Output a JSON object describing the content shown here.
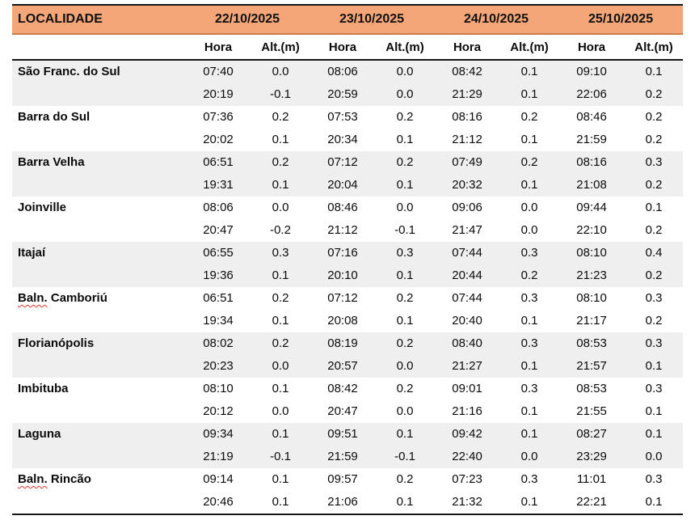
{
  "table": {
    "locality_header": "LOCALIDADE",
    "dates": [
      "22/10/2025",
      "23/10/2025",
      "24/10/2025",
      "25/10/2025"
    ],
    "sub_headers": {
      "hora": "Hora",
      "alt": "Alt.(m)"
    },
    "colors": {
      "header_bg": "#F4A678",
      "zebra_bg": "#EFEFEF",
      "squiggle": "#E2372B",
      "border": "#151515"
    },
    "localities": [
      {
        "parts": [
          {
            "text": "São Franc. do Sul",
            "squiggle": false
          }
        ],
        "rows": [
          [
            "07:40",
            "0.0",
            "08:06",
            "0.0",
            "08:42",
            "0.1",
            "09:10",
            "0.1"
          ],
          [
            "20:19",
            "-0.1",
            "20:59",
            "0.0",
            "21:29",
            "0.1",
            "22:06",
            "0.2"
          ]
        ]
      },
      {
        "parts": [
          {
            "text": "Barra do Sul",
            "squiggle": false
          }
        ],
        "rows": [
          [
            "07:36",
            "0.2",
            "07:53",
            "0.2",
            "08:16",
            "0.2",
            "08:46",
            "0.2"
          ],
          [
            "20:02",
            "0.1",
            "20:34",
            "0.1",
            "21:12",
            "0.1",
            "21:59",
            "0.2"
          ]
        ]
      },
      {
        "parts": [
          {
            "text": "Barra Velha",
            "squiggle": false
          }
        ],
        "rows": [
          [
            "06:51",
            "0.2",
            "07:12",
            "0.2",
            "07:49",
            "0.2",
            "08:16",
            "0.3"
          ],
          [
            "19:31",
            "0.1",
            "20:04",
            "0.1",
            "20:32",
            "0.1",
            "21:08",
            "0.2"
          ]
        ]
      },
      {
        "parts": [
          {
            "text": "Joinville",
            "squiggle": false
          }
        ],
        "rows": [
          [
            "08:06",
            "0.0",
            "08:46",
            "0.0",
            "09:06",
            "0.0",
            "09:44",
            "0.1"
          ],
          [
            "20:47",
            "-0.2",
            "21:12",
            "-0.1",
            "21:47",
            "0.0",
            "22:10",
            "0.2"
          ]
        ]
      },
      {
        "parts": [
          {
            "text": "Itajaí",
            "squiggle": false
          }
        ],
        "rows": [
          [
            "06:55",
            "0.3",
            "07:16",
            "0.3",
            "07:44",
            "0.3",
            "08:10",
            "0.4"
          ],
          [
            "19:36",
            "0.1",
            "20:10",
            "0.1",
            "20:44",
            "0.2",
            "21:23",
            "0.2"
          ]
        ]
      },
      {
        "parts": [
          {
            "text": "Baln.",
            "squiggle": true
          },
          {
            "text": " Camboriú",
            "squiggle": false
          }
        ],
        "rows": [
          [
            "06:51",
            "0.2",
            "07:12",
            "0.2",
            "07:44",
            "0.3",
            "08:10",
            "0.3"
          ],
          [
            "19:34",
            "0.1",
            "20:08",
            "0.1",
            "20:40",
            "0.1",
            "21:17",
            "0.2"
          ]
        ]
      },
      {
        "parts": [
          {
            "text": "Florianópolis",
            "squiggle": false
          }
        ],
        "rows": [
          [
            "08:02",
            "0.2",
            "08:19",
            "0.2",
            "08:40",
            "0.3",
            "08:53",
            "0.3"
          ],
          [
            "20:23",
            "0.0",
            "20:57",
            "0.0",
            "21:27",
            "0.1",
            "21:57",
            "0.1"
          ]
        ]
      },
      {
        "parts": [
          {
            "text": "Imbituba",
            "squiggle": false
          }
        ],
        "rows": [
          [
            "08:10",
            "0.1",
            "08:42",
            "0.2",
            "09:01",
            "0.3",
            "08:53",
            "0.3"
          ],
          [
            "20:12",
            "0.0",
            "20:47",
            "0.0",
            "21:16",
            "0.1",
            "21:55",
            "0.1"
          ]
        ]
      },
      {
        "parts": [
          {
            "text": "Laguna",
            "squiggle": false
          }
        ],
        "rows": [
          [
            "09:34",
            "0.1",
            "09:51",
            "0.1",
            "09:42",
            "0.1",
            "08:27",
            "0.1"
          ],
          [
            "21:19",
            "-0.1",
            "21:59",
            "-0.1",
            "22:40",
            "0.0",
            "23:29",
            "0.0"
          ]
        ]
      },
      {
        "parts": [
          {
            "text": "Baln.",
            "squiggle": true
          },
          {
            "text": " Rincão",
            "squiggle": false
          }
        ],
        "rows": [
          [
            "09:14",
            "0.1",
            "09:57",
            "0.2",
            "07:23",
            "0.3",
            "11:01",
            "0.3"
          ],
          [
            "20:46",
            "0.1",
            "21:06",
            "0.1",
            "21:32",
            "0.1",
            "22:21",
            "0.1"
          ]
        ]
      }
    ]
  }
}
